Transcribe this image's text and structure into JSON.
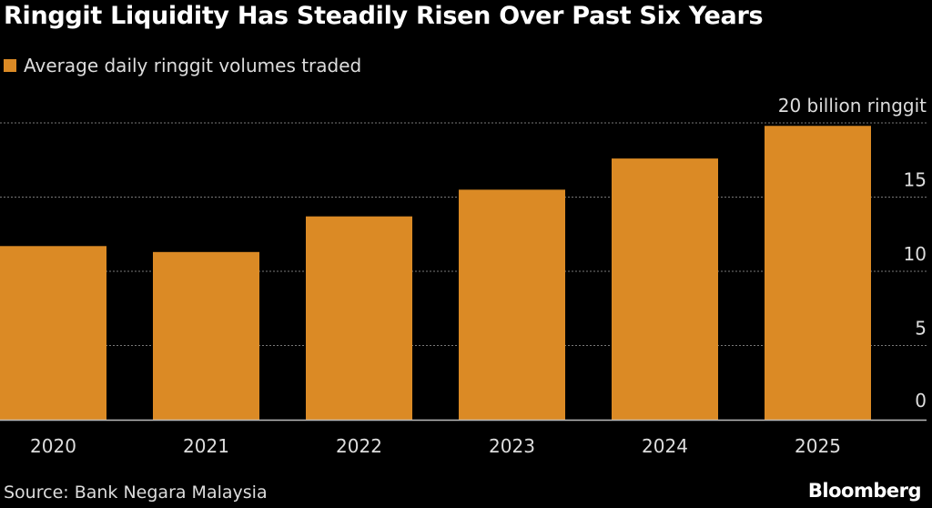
{
  "title": "Ringgit Liquidity Has Steadily Risen Over Past Six Years",
  "source": "Source: Bank Negara Malaysia",
  "logo": "Bloomberg",
  "colors": {
    "bar": "#db8a25",
    "background": "#000000",
    "grid": "#777777"
  },
  "chart_data": {
    "type": "bar",
    "title": "Ringgit Liquidity Has Steadily Risen Over Past Six Years",
    "legend": [
      {
        "name": "Average daily ringgit volumes traded",
        "color": "#db8a25"
      }
    ],
    "legend_placement": "top-left",
    "categories": [
      "2020",
      "2021",
      "2022",
      "2023",
      "2024",
      "2025"
    ],
    "series": [
      {
        "name": "Average daily ringgit volumes traded",
        "values": [
          11.7,
          11.3,
          13.7,
          15.5,
          17.6,
          19.8
        ]
      }
    ],
    "yticks": [
      0,
      5,
      10,
      15,
      20
    ],
    "ytick_labels": [
      "0",
      "5",
      "10",
      "15",
      "20 billion ringgit"
    ],
    "ylim": [
      0,
      20
    ],
    "yaxis_position": "right",
    "grid": true
  }
}
